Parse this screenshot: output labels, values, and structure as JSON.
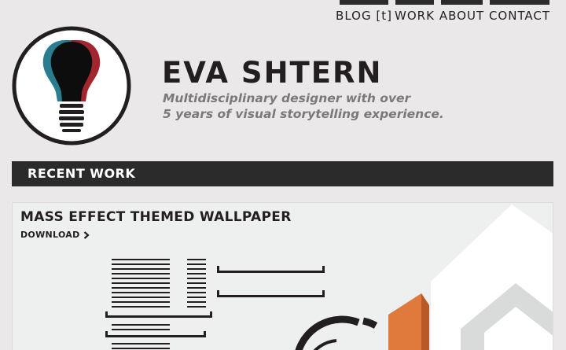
{
  "nav": {
    "items": [
      {
        "label": "BLOG [t]"
      },
      {
        "label": "WORK"
      },
      {
        "label": "ABOUT"
      },
      {
        "label": "CONTACT"
      }
    ]
  },
  "header": {
    "title": "EVA SHTERN",
    "tagline_line1": "Multidisciplinary designer with over",
    "tagline_line2": "5 years of visual storytelling experience."
  },
  "recent_work": {
    "heading": "RECENT WORK",
    "item_title": "MASS EFFECT THEMED WALLPAPER",
    "download_label": "DOWNLOAD"
  },
  "colors": {
    "dark": "#2b2b2b",
    "background": "#eae8e8",
    "logo_teal": "#2a7d8e",
    "logo_red": "#a3262f",
    "accent_orange": "#e07a3c"
  },
  "icons": {
    "logo": "lightbulb-icon",
    "download_arrow": "chevron-right-icon"
  }
}
